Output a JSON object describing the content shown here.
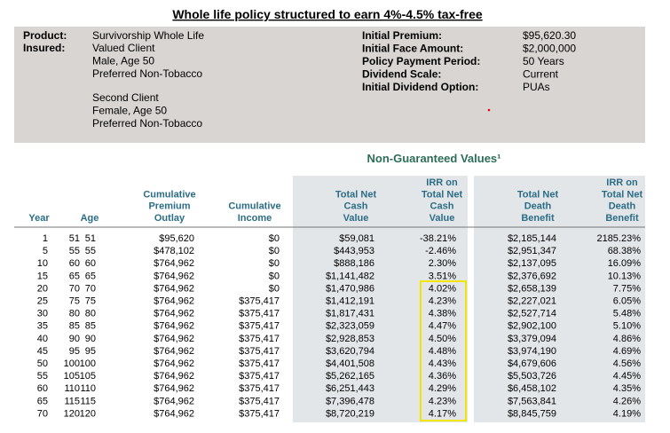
{
  "title": "Whole life policy structured to earn 4%-4.5% tax-free",
  "summary": {
    "left": {
      "product_label": "Product:",
      "product": "Survivorship Whole Life",
      "insured_label": "Insured:",
      "client1": [
        "Valued Client",
        "Male, Age 50",
        "Preferred Non-Tobacco"
      ],
      "client2": [
        "Second Client",
        "Female, Age 50",
        "Preferred Non-Tobacco"
      ]
    },
    "right": [
      [
        "Initial Premium:",
        "$95,620.30"
      ],
      [
        "Initial Face Amount:",
        "$2,000,000"
      ],
      [
        "Policy Payment Period:",
        "50 Years"
      ],
      [
        "Dividend Scale:",
        "Current"
      ],
      [
        "Initial Dividend Option:",
        "PUAs"
      ]
    ]
  },
  "section_title": "Non-Guaranteed Values¹",
  "table": {
    "headers": [
      [
        "Year"
      ],
      [
        "Age"
      ],
      [
        "Cumulative",
        "Premium",
        "Outlay"
      ],
      [
        "Cumulative",
        "Income"
      ],
      [
        "Total Net",
        "Cash",
        "Value"
      ],
      [
        "IRR on",
        "Total Net",
        "Cash",
        "Value"
      ],
      [
        "Total Net",
        "Death",
        "Benefit"
      ],
      [
        "IRR on",
        "Total Net",
        "Death",
        "Benefit"
      ]
    ],
    "rows": [
      [
        "1",
        "51",
        "51",
        "$95,620",
        "$0",
        "$59,081",
        "-38.21%",
        "$2,185,144",
        "2185.23%"
      ],
      [
        "5",
        "55",
        "55",
        "$478,102",
        "$0",
        "$443,953",
        "-2.46%",
        "$2,951,347",
        "68.38%"
      ],
      [
        "10",
        "60",
        "60",
        "$764,962",
        "$0",
        "$888,186",
        "2.30%",
        "$2,137,095",
        "16.09%"
      ],
      [
        "15",
        "65",
        "65",
        "$764,962",
        "$0",
        "$1,141,482",
        "3.51%",
        "$2,376,692",
        "10.13%"
      ],
      [
        "20",
        "70",
        "70",
        "$764,962",
        "$0",
        "$1,470,986",
        "4.02%",
        "$2,658,139",
        "7.75%"
      ],
      [
        "25",
        "75",
        "75",
        "$764,962",
        "$375,417",
        "$1,412,191",
        "4.23%",
        "$2,227,021",
        "6.05%"
      ],
      [
        "30",
        "80",
        "80",
        "$764,962",
        "$375,417",
        "$1,817,431",
        "4.38%",
        "$2,527,714",
        "5.48%"
      ],
      [
        "35",
        "85",
        "85",
        "$764,962",
        "$375,417",
        "$2,323,059",
        "4.47%",
        "$2,902,100",
        "5.10%"
      ],
      [
        "40",
        "90",
        "90",
        "$764,962",
        "$375,417",
        "$2,928,853",
        "4.50%",
        "$3,379,094",
        "4.86%"
      ],
      [
        "45",
        "95",
        "95",
        "$764,962",
        "$375,417",
        "$3,620,794",
        "4.48%",
        "$3,974,190",
        "4.69%"
      ],
      [
        "50",
        "100",
        "100",
        "$764,962",
        "$375,417",
        "$4,401,508",
        "4.43%",
        "$4,679,606",
        "4.56%"
      ],
      [
        "55",
        "105",
        "105",
        "$764,962",
        "$375,417",
        "$5,262,165",
        "4.36%",
        "$5,503,726",
        "4.45%"
      ],
      [
        "60",
        "110",
        "110",
        "$764,962",
        "$375,417",
        "$6,251,443",
        "4.29%",
        "$6,458,102",
        "4.35%"
      ],
      [
        "65",
        "115",
        "115",
        "$764,962",
        "$375,417",
        "$7,396,478",
        "4.23%",
        "$7,563,841",
        "4.26%"
      ],
      [
        "70",
        "120",
        "120",
        "$764,962",
        "$375,417",
        "$8,720,219",
        "4.17%",
        "$8,845,759",
        "4.19%"
      ]
    ]
  }
}
